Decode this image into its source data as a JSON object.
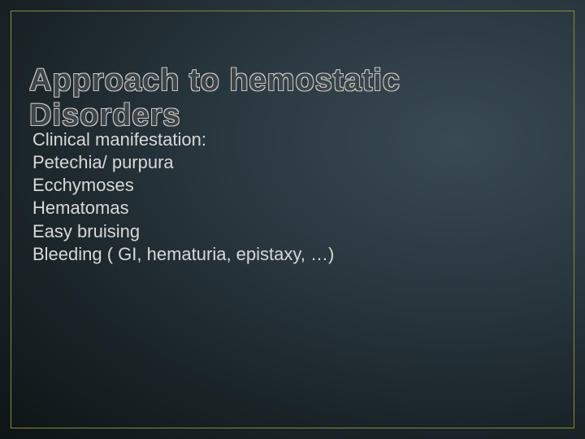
{
  "slide": {
    "title": "Approach to hemostatic Disorders",
    "lines": [
      "Clinical manifestation:",
      "Petechia/ purpura",
      "Ecchymoses",
      "Hematomas",
      "Easy bruising",
      "Bleeding ( GI, hematuria, epistaxy, …)"
    ],
    "title_fontsize": 38,
    "body_fontsize": 22,
    "title_outline_color": "#c8c8c8",
    "title_fill_color": "#3d4548",
    "body_text_color": "#d8d8d8",
    "border_color": "#8a8a3a",
    "background_gradient": {
      "type": "radial",
      "center": "78% 32%",
      "stops": [
        {
          "color": "#3a4a52",
          "at": "0%"
        },
        {
          "color": "#2a3840",
          "at": "28%"
        },
        {
          "color": "#1a2428",
          "at": "55%"
        },
        {
          "color": "#0d1416",
          "at": "80%"
        },
        {
          "color": "#060b0d",
          "at": "100%"
        }
      ]
    }
  }
}
